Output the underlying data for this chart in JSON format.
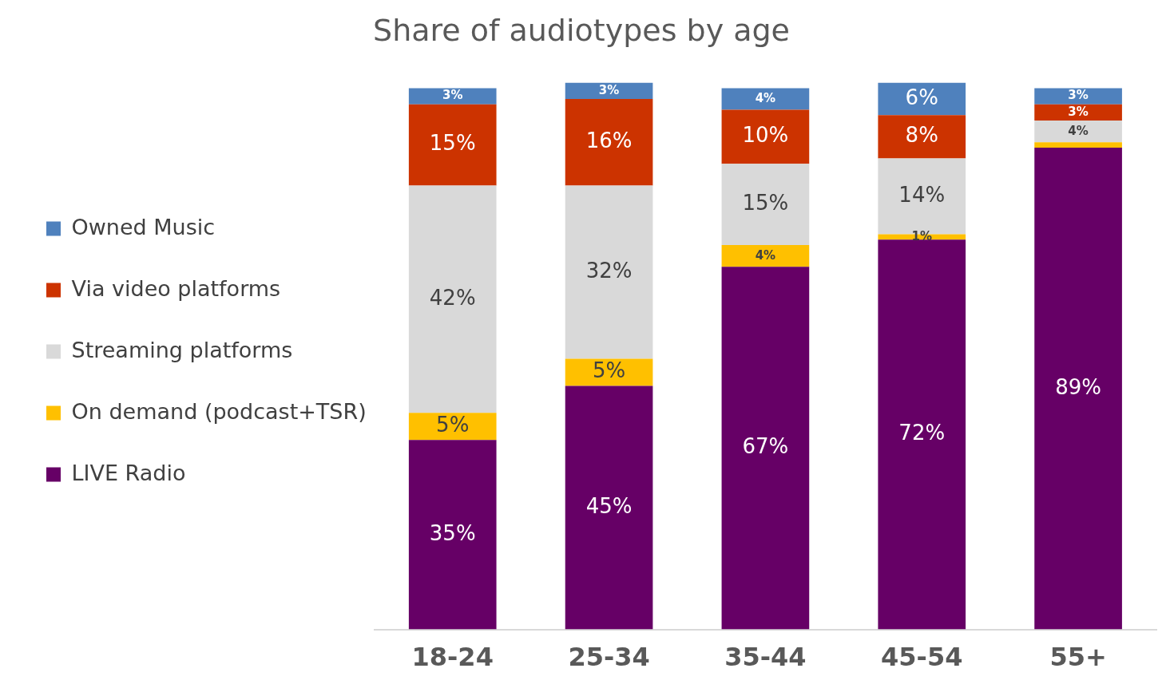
{
  "chart_data": {
    "type": "bar",
    "title": "Share of audiotypes by age",
    "categories": [
      "18-24",
      "25-34",
      "35-44",
      "45-54",
      "55+"
    ],
    "stacked": true,
    "legend": "left",
    "grid": false,
    "tick_labels": "x",
    "series": [
      {
        "name": "LIVE Radio",
        "color": "#660066",
        "values": [
          35,
          45,
          67,
          72,
          89
        ],
        "value_labels": [
          "35%",
          "45%",
          "67%",
          "72%",
          "89%"
        ]
      },
      {
        "name": "On demand (podcast+TSR)",
        "color": "#ffc000",
        "values": [
          5,
          5,
          4,
          1,
          1
        ],
        "value_labels": [
          "5%",
          "5%",
          "4%",
          "1%",
          null
        ]
      },
      {
        "name": "Streaming platforms",
        "color": "#d9d9d9",
        "values": [
          42,
          32,
          15,
          14,
          4
        ],
        "value_labels": [
          "42%",
          "32%",
          "15%",
          "14%",
          "4%"
        ]
      },
      {
        "name": "Via video platforms",
        "color": "#cc3300",
        "values": [
          15,
          16,
          10,
          8,
          3
        ],
        "value_labels": [
          "15%",
          "16%",
          "10%",
          "8%",
          "3%"
        ]
      },
      {
        "name": "Owned Music",
        "color": "#4f81bd",
        "values": [
          3,
          3,
          4,
          6,
          3
        ],
        "value_labels": [
          "3%",
          "3%",
          "4%",
          "6%",
          "3%"
        ]
      }
    ]
  }
}
